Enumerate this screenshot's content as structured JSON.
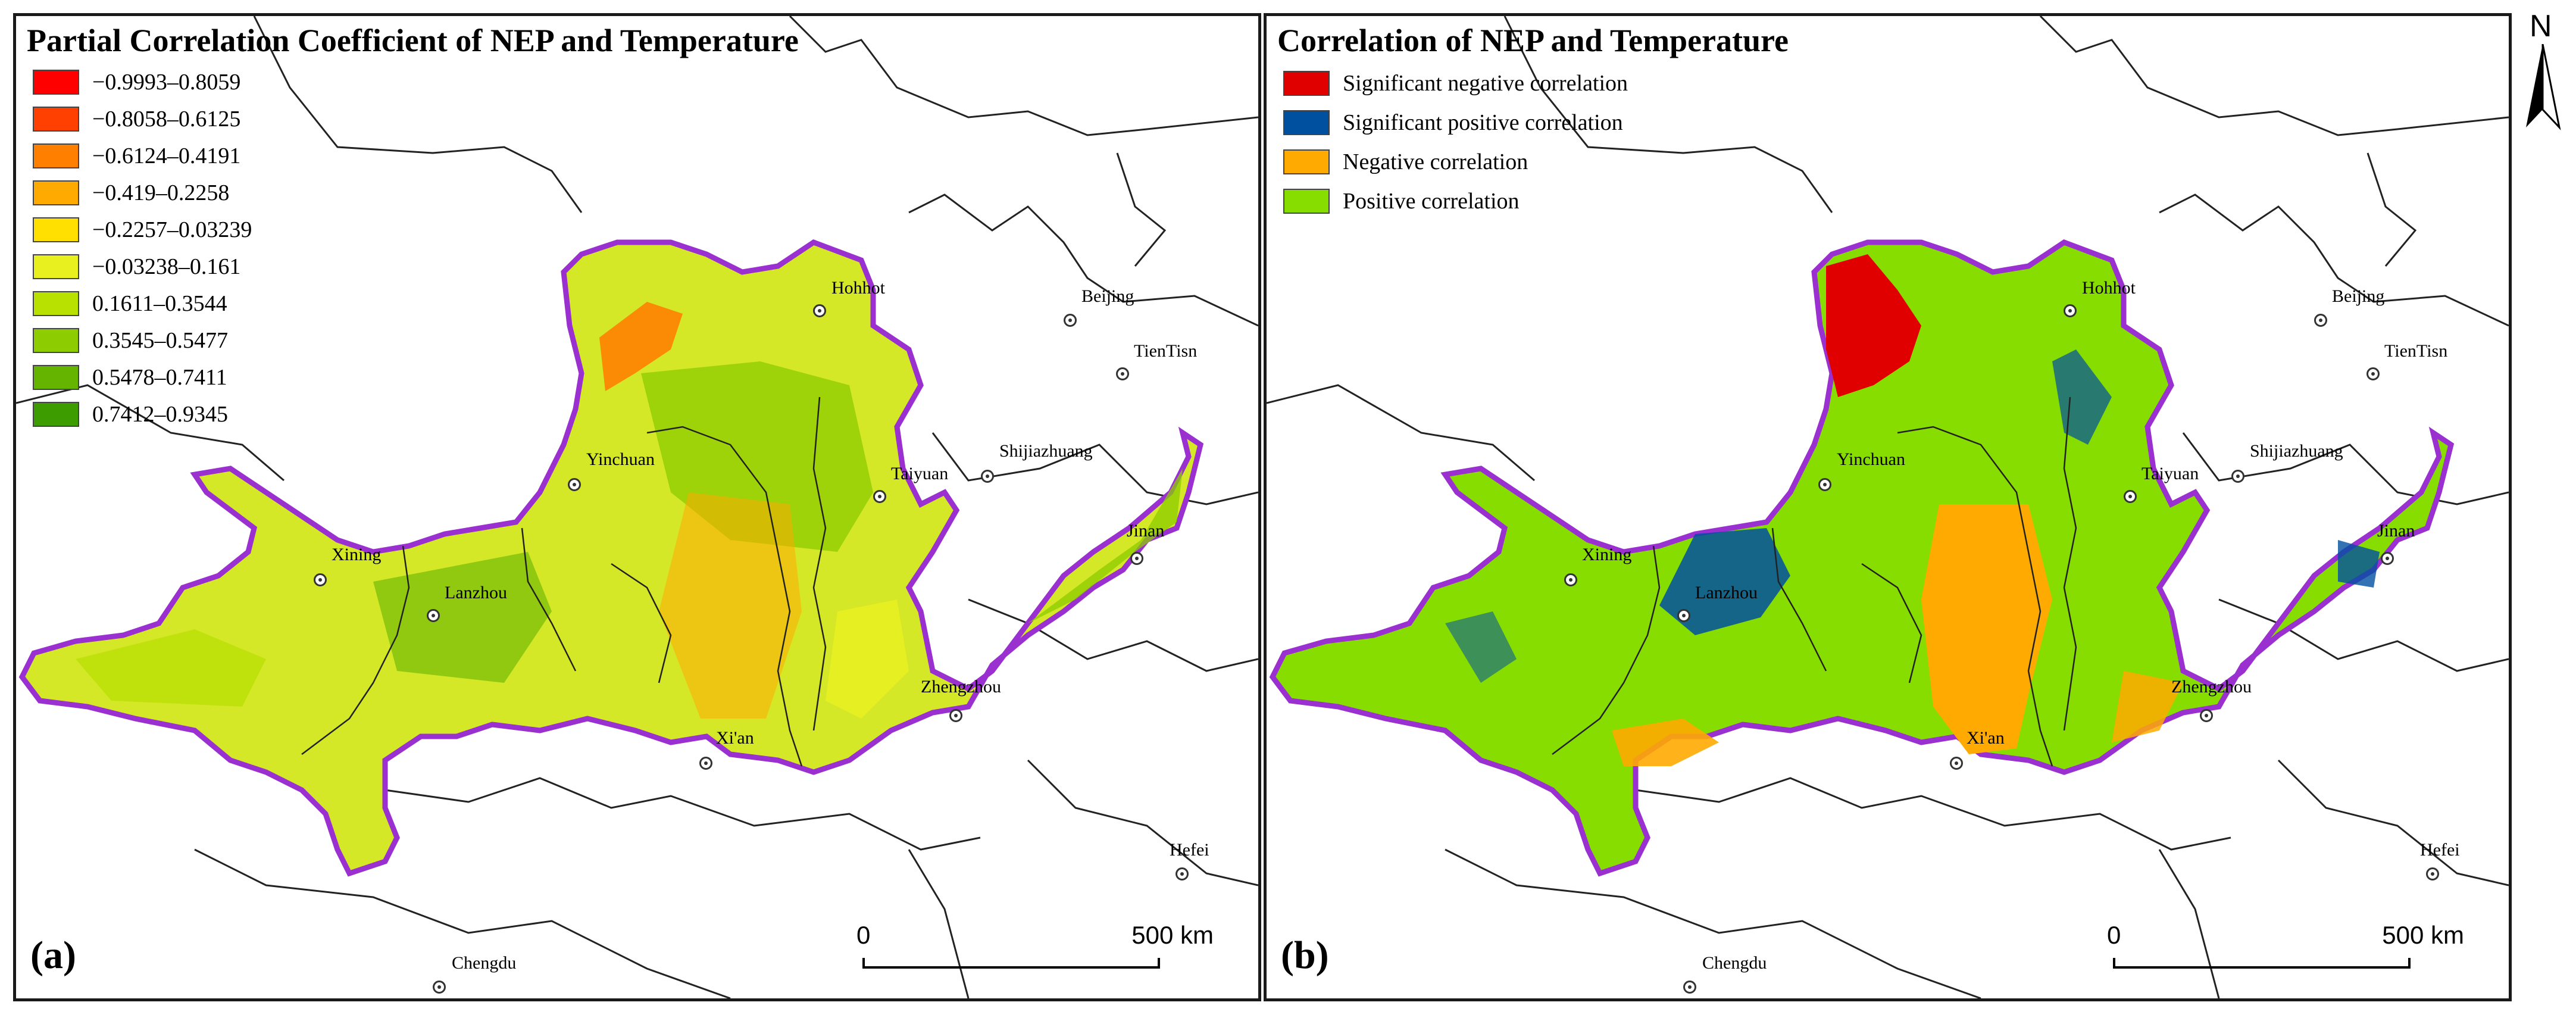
{
  "panel_a": {
    "title": "Partial Correlation Coefficient of NEP and Temperature",
    "letter": "(a)",
    "legend": [
      {
        "label": "−0.9993–0.8059",
        "color": "#ff0000"
      },
      {
        "label": "−0.8058–0.6125",
        "color": "#ff4000"
      },
      {
        "label": "−0.6124–0.4191",
        "color": "#ff8000"
      },
      {
        "label": "−0.419–0.2258",
        "color": "#ffaa00"
      },
      {
        "label": "−0.2257–0.03239",
        "color": "#ffe000"
      },
      {
        "label": "−0.03238–0.161",
        "color": "#e8f020"
      },
      {
        "label": "0.1611–0.3544",
        "color": "#b8e000"
      },
      {
        "label": "0.3545–0.5477",
        "color": "#8ccc00"
      },
      {
        "label": "0.5478–0.7411",
        "color": "#64b400"
      },
      {
        "label": "0.7412–0.9345",
        "color": "#3c9c00"
      }
    ]
  },
  "panel_b": {
    "title": "Correlation of NEP and Temperature",
    "letter": "(b)",
    "legend": [
      {
        "label": "Significant negative correlation",
        "color": "#e00000"
      },
      {
        "label": "Significant positive correlation",
        "color": "#0050a0"
      },
      {
        "label": "Negative correlation",
        "color": "#ffaa00"
      },
      {
        "label": "Positive correlation",
        "color": "#88dd00"
      }
    ]
  },
  "cities": [
    "Hohhot",
    "Beijing",
    "TienTisn",
    "Yinchuan",
    "Taiyuan",
    "Shijiazhuang",
    "Xining",
    "Lanzhou",
    "Jinan",
    "Zhengzhou",
    "Xi'an",
    "Hefei",
    "Chengdu"
  ],
  "scale": {
    "zero": "0",
    "max": "500 km"
  },
  "north": "N",
  "colors": {
    "basin_outline": "#9b30d0",
    "boundary": "#222222"
  }
}
